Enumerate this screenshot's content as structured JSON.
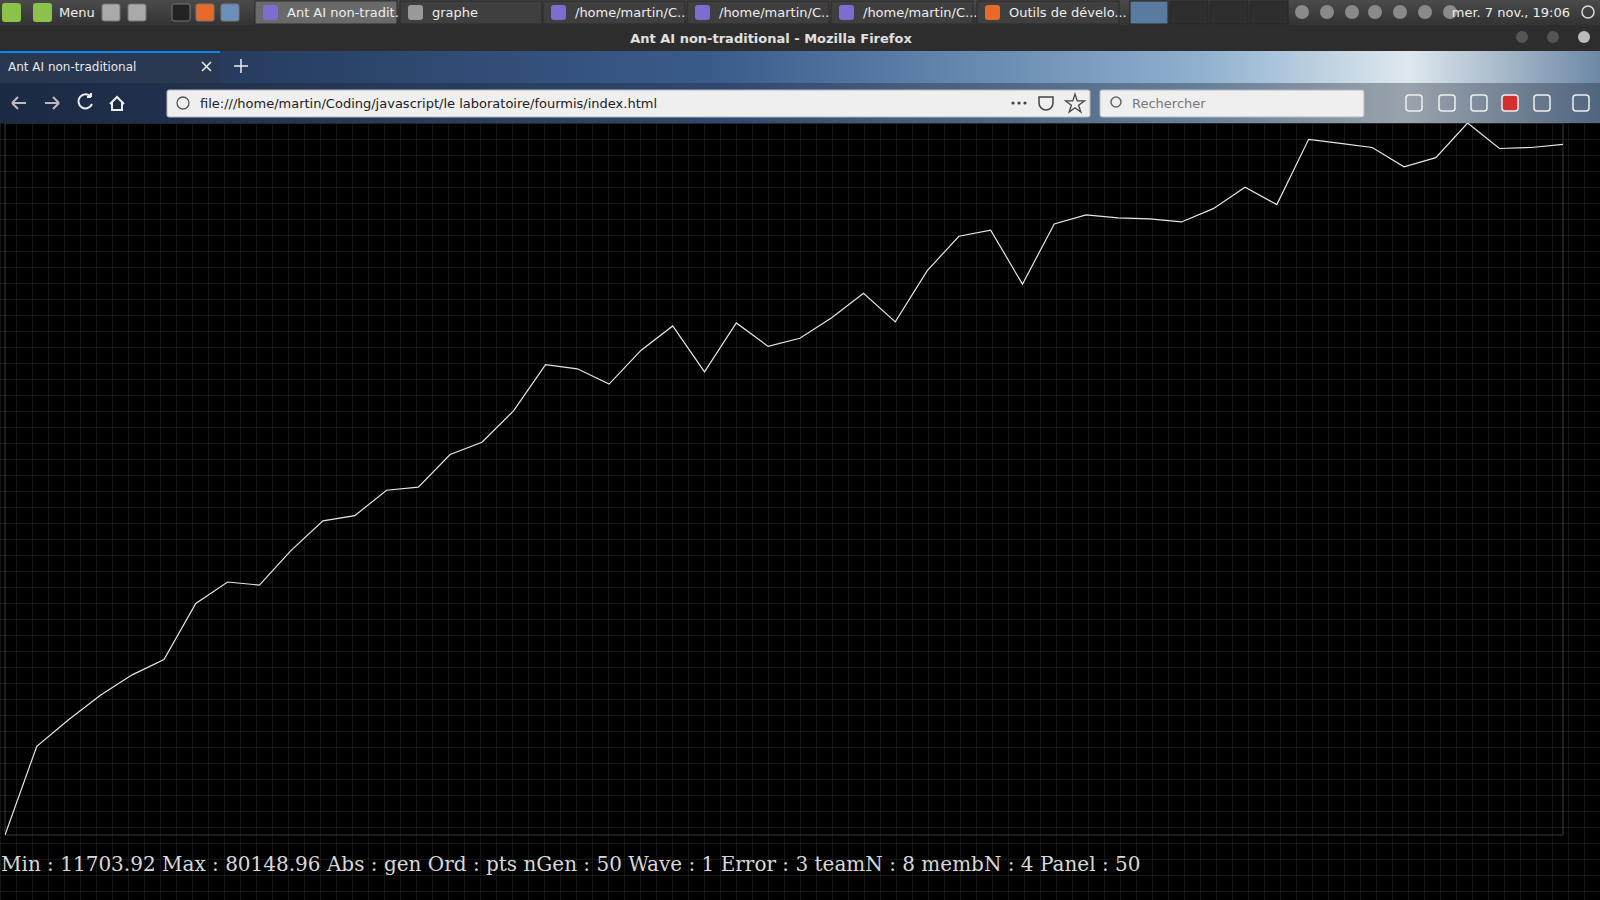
{
  "desktop": {
    "taskbar": {
      "menu": "Menu",
      "windows": [
        "Ant AI non-tradit...",
        "graphe",
        "/home/martin/C...",
        "/home/martin/C...",
        "/home/martin/C...",
        "Outils de dévelo..."
      ],
      "clock": "mer. 7 nov., 19:06"
    }
  },
  "browser": {
    "window_title": "Ant AI non-traditional - Mozilla Firefox",
    "tab_title": "Ant AI non-traditional",
    "url": "file:///home/martin/Coding/javascript/le laboratoire/fourmis/index.html",
    "search_placeholder": "Rechercher"
  },
  "page": {
    "status_line": "Min : 11703.92 Max : 80148.96 Abs : gen Ord : pts nGen : 50 Wave : 1 Error : 3 teamN : 8 membN : 4 Panel : 50"
  },
  "chart_data": {
    "type": "line",
    "x": [
      1,
      2,
      3,
      4,
      5,
      6,
      7,
      8,
      9,
      10,
      11,
      12,
      13,
      14,
      15,
      16,
      17,
      18,
      19,
      20,
      21,
      22,
      23,
      24,
      25,
      26,
      27,
      28,
      29,
      30,
      31,
      32,
      33,
      34,
      35,
      36,
      37,
      38,
      39,
      40,
      41,
      42,
      43,
      44,
      45,
      46,
      47,
      48,
      49,
      50
    ],
    "values": [
      11703.92,
      20235,
      22785,
      25138,
      27099,
      28570,
      33964,
      36023,
      35729,
      39063,
      41906,
      42397,
      44848,
      45142,
      48280,
      49457,
      52497,
      56910,
      56517,
      55047,
      58283,
      60636,
      56223,
      60930,
      58675,
      59459,
      61420,
      63774,
      61028,
      65931,
      69265,
      69854,
      64656,
      70442,
      71324,
      71030,
      70932,
      70638,
      71913,
      73972,
      72305,
      78581,
      78189,
      77796,
      75933,
      76816,
      80148.96,
      77698,
      77796,
      78091
    ],
    "xlim": [
      1,
      50
    ],
    "ylim": [
      11703.92,
      80148.96
    ],
    "color": "#e6e6e6",
    "grid": true,
    "tick_labels": false
  }
}
